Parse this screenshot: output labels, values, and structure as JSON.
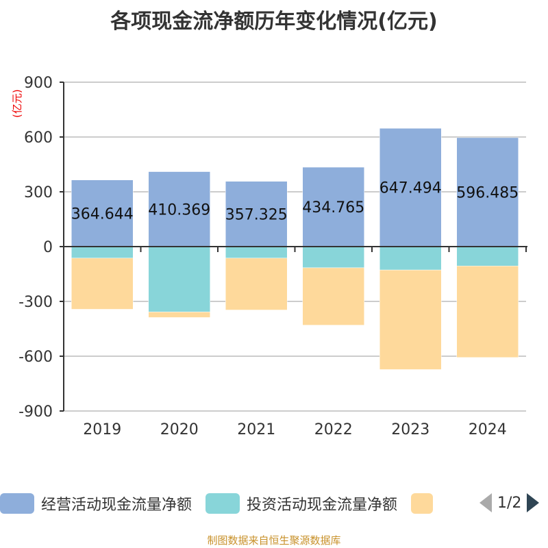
{
  "chart_data": {
    "type": "bar",
    "stacked": true,
    "title": "各项现金流净额历年变化情况(亿元)",
    "ylabel": "(亿元)",
    "xlabel": "",
    "categories": [
      "2019",
      "2020",
      "2021",
      "2022",
      "2023",
      "2024"
    ],
    "ylim": [
      -900,
      900
    ],
    "yticks": [
      900,
      600,
      300,
      0,
      -300,
      -600,
      -900
    ],
    "grid": true,
    "legend_position": "bottom",
    "series": [
      {
        "name": "经营活动现金流量净额",
        "color": "#8eaedb",
        "values": [
          364.644,
          410.369,
          357.325,
          434.765,
          647.494,
          596.485
        ],
        "labels": [
          "364.644",
          "410.369",
          "357.325",
          "434.765",
          "647.494",
          "596.485"
        ]
      },
      {
        "name": "投资活动现金流量净额",
        "color": "#88d5d9",
        "values": [
          -63,
          -358,
          -63,
          -116,
          -128,
          -106
        ]
      },
      {
        "color": "#fed99b",
        "values": [
          -280,
          -30,
          -284,
          -314,
          -545,
          -501
        ]
      }
    ]
  },
  "legend": {
    "page": "1/2"
  },
  "footer": "制图数据来自恒生聚源数据库"
}
